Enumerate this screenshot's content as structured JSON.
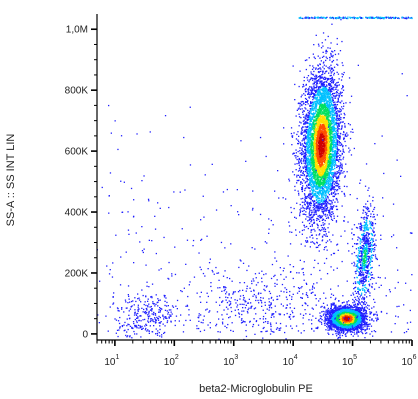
{
  "chart_data": {
    "type": "scatter",
    "subtype": "flow-cytometry-density-dot-plot",
    "xlabel": "beta2-Microglobulin PE",
    "ylabel": "SS-A :: SS INT LIN",
    "x_scale": "log",
    "xlim": [
      5,
      1000000
    ],
    "x_ticks": [
      {
        "value": 10,
        "base": "10",
        "exp": "1"
      },
      {
        "value": 100,
        "base": "10",
        "exp": "2"
      },
      {
        "value": 1000,
        "base": "10",
        "exp": "3"
      },
      {
        "value": 10000,
        "base": "10",
        "exp": "4"
      },
      {
        "value": 100000,
        "base": "10",
        "exp": "5"
      },
      {
        "value": 1000000,
        "base": "10",
        "exp": "6"
      }
    ],
    "y_scale": "linear",
    "ylim": [
      -20000,
      1050000
    ],
    "y_ticks": [
      {
        "value": 0,
        "label": "0"
      },
      {
        "value": 200000,
        "label": "200K"
      },
      {
        "value": 400000,
        "label": "400K"
      },
      {
        "value": 600000,
        "label": "600K"
      },
      {
        "value": 800000,
        "label": "800K"
      },
      {
        "value": 1000000,
        "label": "1,0M"
      }
    ],
    "grid": false,
    "color_scale": [
      "#2020ff",
      "#00c0ff",
      "#00e060",
      "#ffe000",
      "#ff5000",
      "#d00000"
    ],
    "populations": [
      {
        "center_x": 30000,
        "center_y": 620000,
        "spread_log_x": 0.16,
        "spread_y": 120000,
        "count": 5200
      },
      {
        "center_x": 80000,
        "center_y": 50000,
        "spread_log_x": 0.16,
        "spread_y": 20000,
        "count": 2600
      },
      {
        "center_x": 160000,
        "center_y": 250000,
        "spread_log_x": 0.08,
        "spread_y": 80000,
        "count": 700
      },
      {
        "center_x": 35,
        "center_y": 60000,
        "spread_log_x": 0.25,
        "spread_y": 35000,
        "count": 260
      },
      {
        "center_x": 3000,
        "center_y": 100000,
        "spread_log_x": 0.6,
        "spread_y": 60000,
        "count": 350
      }
    ],
    "saturation_y": 1040000
  }
}
